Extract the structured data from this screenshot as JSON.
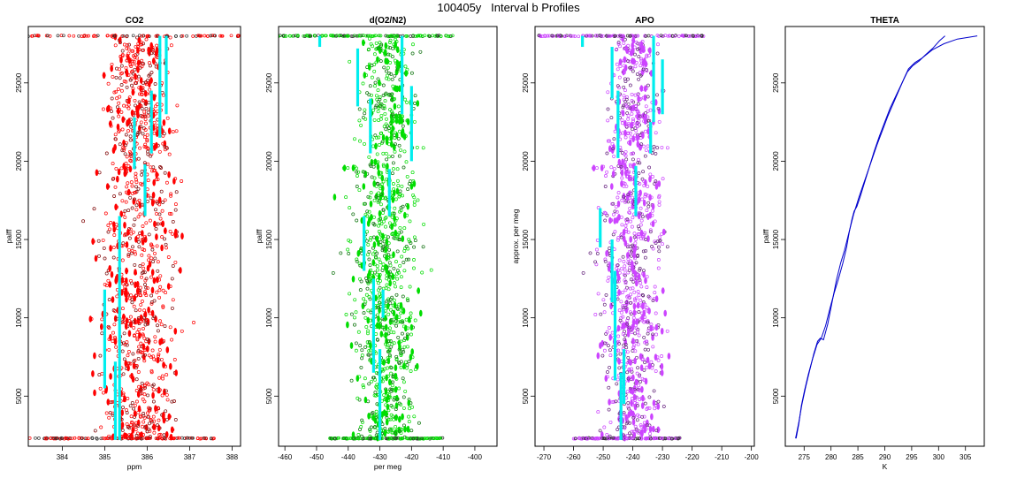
{
  "title": "100405y   Interval b Profiles",
  "chart_data": [
    {
      "type": "scatter",
      "title": "CO2",
      "xlabel": "ppm",
      "ylabel": "palff",
      "xlim": [
        383.2,
        388.2
      ],
      "ylim": [
        1800,
        28600
      ],
      "xticks": [
        384,
        385,
        386,
        387,
        388
      ],
      "yticks": [
        5000,
        10000,
        15000,
        20000,
        25000
      ],
      "point_color": "#ff0000",
      "marker": "open-circle",
      "center": 385.8,
      "spread": [
        1.3,
        0.75,
        0.55
      ],
      "tops": [
        {
          "y": 28000,
          "x": 385.8,
          "w": 4.5
        },
        {
          "y": 2300,
          "x": 385.2,
          "w": 2.4
        }
      ],
      "segments": [
        {
          "x": 385.25,
          "y0": 2200,
          "y1": 7200
        },
        {
          "x": 385.0,
          "y0": 5500,
          "y1": 11800
        },
        {
          "x": 385.35,
          "y0": 2200,
          "y1": 16500
        },
        {
          "x": 385.95,
          "y0": 16500,
          "y1": 19800
        },
        {
          "x": 385.7,
          "y0": 19500,
          "y1": 22800
        },
        {
          "x": 386.1,
          "y0": 20500,
          "y1": 24500
        },
        {
          "x": 386.3,
          "y0": 21500,
          "y1": 28000
        },
        {
          "x": 386.45,
          "y0": 23000,
          "y1": 28000
        }
      ]
    },
    {
      "type": "scatter",
      "title": "d(O2/N2)",
      "xlabel": "per meg",
      "ylabel": "palff",
      "xlim": [
        -462,
        -393
      ],
      "ylim": [
        1800,
        28600
      ],
      "xticks": [
        -460,
        -450,
        -440,
        -430,
        -420,
        -410,
        -400
      ],
      "yticks": [
        5000,
        10000,
        15000,
        20000,
        25000
      ],
      "point_color": "#00dd00",
      "marker": "open-circle",
      "center": -428,
      "spread": [
        14,
        9,
        6
      ],
      "tops": [
        {
          "y": 28000,
          "x": -435,
          "w": 28
        },
        {
          "y": 2300,
          "x": -428,
          "w": 18
        }
      ],
      "segments": [
        {
          "x": -430,
          "y0": 2200,
          "y1": 8000
        },
        {
          "x": -432,
          "y0": 6500,
          "y1": 12500
        },
        {
          "x": -429,
          "y0": 10000,
          "y1": 11800
        },
        {
          "x": -435,
          "y0": 13000,
          "y1": 16500
        },
        {
          "x": -427,
          "y0": 16500,
          "y1": 19500
        },
        {
          "x": -420,
          "y0": 20000,
          "y1": 24800
        },
        {
          "x": -433,
          "y0": 20500,
          "y1": 24000
        },
        {
          "x": -437,
          "y0": 23500,
          "y1": 27200
        },
        {
          "x": -423,
          "y0": 23000,
          "y1": 28000
        },
        {
          "x": -449,
          "y0": 27300,
          "y1": 28000
        }
      ]
    },
    {
      "type": "scatter",
      "title": "APO",
      "xlabel": "",
      "ylabel": "approx. per meg",
      "xlim": [
        -273,
        -199
      ],
      "ylim": [
        1800,
        28600
      ],
      "xticks": [
        -270,
        -260,
        -250,
        -240,
        -230,
        -220,
        -210,
        -200
      ],
      "yticks": [
        5000,
        10000,
        15000,
        20000,
        25000
      ],
      "point_color": "#cc44ff",
      "marker": "open-circle",
      "center": -240,
      "spread": [
        14,
        9,
        6
      ],
      "tops": [
        {
          "y": 28000,
          "x": -244,
          "w": 28
        },
        {
          "y": 2300,
          "x": -242,
          "w": 18
        }
      ],
      "segments": [
        {
          "x": -244,
          "y0": 2200,
          "y1": 6500
        },
        {
          "x": -243,
          "y0": 4500,
          "y1": 8000
        },
        {
          "x": -246,
          "y0": 6000,
          "y1": 13000
        },
        {
          "x": -247,
          "y0": 11000,
          "y1": 15000
        },
        {
          "x": -251,
          "y0": 14500,
          "y1": 17000
        },
        {
          "x": -239,
          "y0": 16500,
          "y1": 19700
        },
        {
          "x": -245,
          "y0": 20200,
          "y1": 24500
        },
        {
          "x": -234,
          "y0": 20500,
          "y1": 22500
        },
        {
          "x": -233,
          "y0": 22500,
          "y1": 28000
        },
        {
          "x": -247,
          "y0": 24000,
          "y1": 27300
        },
        {
          "x": -230,
          "y0": 23000,
          "y1": 26500
        },
        {
          "x": -257,
          "y0": 27300,
          "y1": 28000
        }
      ]
    },
    {
      "type": "line",
      "title": "THETA",
      "xlabel": "K",
      "ylabel": "palff",
      "xlim": [
        271.5,
        308.5
      ],
      "ylim": [
        1800,
        28600
      ],
      "xticks": [
        275,
        280,
        285,
        290,
        295,
        300,
        305
      ],
      "yticks": [
        5000,
        10000,
        15000,
        20000,
        25000
      ],
      "line_color": "#0000cc",
      "series": [
        {
          "x": [
            273.4,
            274.0,
            274.6,
            275.3,
            276.0,
            276.8,
            277.5,
            278.0,
            278.6,
            279.4,
            280.2,
            281.0,
            281.8,
            282.5,
            283.3,
            284.2,
            285.2,
            286.3,
            287.4,
            288.5,
            289.6,
            290.6,
            291.6,
            292.6,
            293.6,
            294.4,
            295.6,
            297.0,
            298.8,
            301.0,
            303.5,
            307.2
          ],
          "y": [
            2300,
            3300,
            4500,
            5600,
            6600,
            7700,
            8500,
            8700,
            8600,
            9600,
            11000,
            12400,
            13500,
            14300,
            15400,
            16600,
            17700,
            18800,
            19900,
            21000,
            22000,
            22900,
            23700,
            24500,
            25300,
            25900,
            26300,
            26600,
            27100,
            27500,
            27800,
            28000
          ]
        },
        {
          "x": [
            273.5,
            274.0,
            274.5,
            275.1,
            275.8,
            276.6,
            277.4,
            278.2,
            279.0,
            279.8,
            280.6,
            281.4,
            282.2,
            282.9,
            283.4,
            283.9,
            284.3,
            284.8,
            285.4,
            286.2,
            287.1,
            288.0,
            289.0,
            290.0,
            291.0,
            292.1,
            293.2,
            294.2,
            295.2,
            296.4,
            297.6,
            298.9,
            300.2,
            301.2
          ],
          "y": [
            2300,
            3200,
            4400,
            5400,
            6400,
            7400,
            8300,
            8700,
            9500,
            10600,
            11600,
            12500,
            13500,
            14500,
            15500,
            16300,
            16800,
            17100,
            17700,
            18600,
            19600,
            20600,
            21600,
            22500,
            23400,
            24200,
            25000,
            25700,
            26100,
            26400,
            26800,
            27200,
            27700,
            28000
          ]
        }
      ]
    }
  ]
}
